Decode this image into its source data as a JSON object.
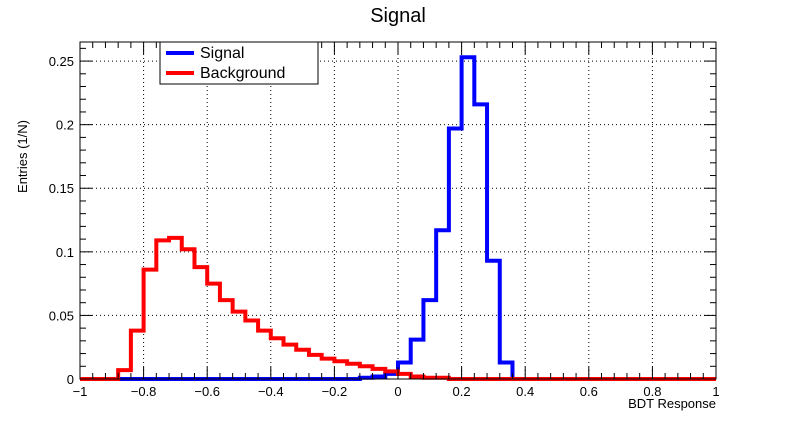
{
  "chart_data": {
    "type": "line",
    "title": "Signal",
    "xlabel": "BDT Response",
    "ylabel": "Entries (1/N)",
    "xlim": [
      -1,
      1
    ],
    "ylim": [
      0,
      0.265
    ],
    "x_ticks": [
      -1,
      -0.8,
      -0.6,
      -0.4,
      -0.2,
      0,
      0.2,
      0.4,
      0.6,
      0.8,
      1
    ],
    "x_tick_labels": [
      "−1",
      "−0.8",
      "−0.6",
      "−0.4",
      "−0.2",
      "0",
      "0.2",
      "0.4",
      "0.6",
      "0.8",
      "1"
    ],
    "y_ticks": [
      0,
      0.05,
      0.1,
      0.15,
      0.2,
      0.25
    ],
    "y_tick_labels": [
      "0",
      "0.05",
      "0.1",
      "0.15",
      "0.2",
      "0.25"
    ],
    "grid": true,
    "legend_position": "top-left",
    "bin_edges": [
      -1,
      -0.96,
      -0.92,
      -0.88,
      -0.84,
      -0.8,
      -0.76,
      -0.72,
      -0.68,
      -0.64,
      -0.6,
      -0.56,
      -0.52,
      -0.48,
      -0.44,
      -0.4,
      -0.36,
      -0.32,
      -0.28,
      -0.24,
      -0.2,
      -0.16,
      -0.12,
      -0.08,
      -0.04,
      0,
      0.04,
      0.08,
      0.12,
      0.16,
      0.2,
      0.24,
      0.28,
      0.32,
      0.36,
      0.4,
      0.44,
      0.48,
      0.52,
      0.56,
      0.6,
      0.64,
      0.68,
      0.72,
      0.76,
      0.8,
      0.84,
      0.88,
      0.92,
      0.96,
      1
    ],
    "series": [
      {
        "name": "Signal",
        "color": "#0000ff",
        "values": [
          0,
          0,
          0,
          0,
          0,
          0,
          0,
          0,
          0,
          0,
          0,
          0,
          0,
          0,
          0,
          0,
          0,
          0,
          0,
          0,
          0,
          0,
          0.001,
          0.002,
          0.004,
          0.013,
          0.031,
          0.062,
          0.117,
          0.197,
          0.253,
          0.216,
          0.093,
          0.013,
          0,
          0,
          0,
          0,
          0,
          0,
          0,
          0,
          0,
          0,
          0,
          0,
          0,
          0,
          0,
          0
        ]
      },
      {
        "name": "Background",
        "color": "#ff0000",
        "values": [
          0,
          0,
          0,
          0.007,
          0.038,
          0.086,
          0.109,
          0.111,
          0.102,
          0.088,
          0.075,
          0.062,
          0.053,
          0.046,
          0.038,
          0.032,
          0.027,
          0.023,
          0.019,
          0.016,
          0.014,
          0.012,
          0.01,
          0.008,
          0.006,
          0.004,
          0.002,
          0.001,
          0.001,
          0,
          0,
          0,
          0,
          0,
          0,
          0,
          0,
          0,
          0,
          0,
          0,
          0,
          0,
          0,
          0,
          0,
          0,
          0,
          0,
          0
        ]
      }
    ]
  }
}
